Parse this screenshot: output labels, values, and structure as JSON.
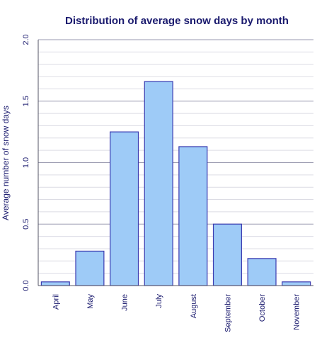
{
  "chart_data": {
    "type": "bar",
    "title": "Distribution of average snow days by month",
    "xlabel": "",
    "ylabel": "Average number of snow days",
    "categories": [
      "April",
      "May",
      "June",
      "July",
      "August",
      "September",
      "October",
      "November"
    ],
    "values": [
      0.03,
      0.28,
      1.25,
      1.66,
      1.13,
      0.5,
      0.22,
      0.03
    ],
    "ylim": [
      0,
      2.0
    ],
    "yticks": [
      "0.0",
      "0.5",
      "1.0",
      "1.5",
      "2.0"
    ],
    "ytick_values": [
      0,
      0.5,
      1.0,
      1.5,
      2.0
    ],
    "minor_grid_step": 0.1,
    "grid": true,
    "legend": "none",
    "colors": {
      "bar_fill": "#9ecbf7",
      "bar_stroke": "#3a3ab0",
      "title": "#1a1a6e",
      "text": "#1a1a6e",
      "major_grid": "#9a9ab0",
      "minor_grid": "#dcdce4",
      "axis": "#555566"
    }
  }
}
